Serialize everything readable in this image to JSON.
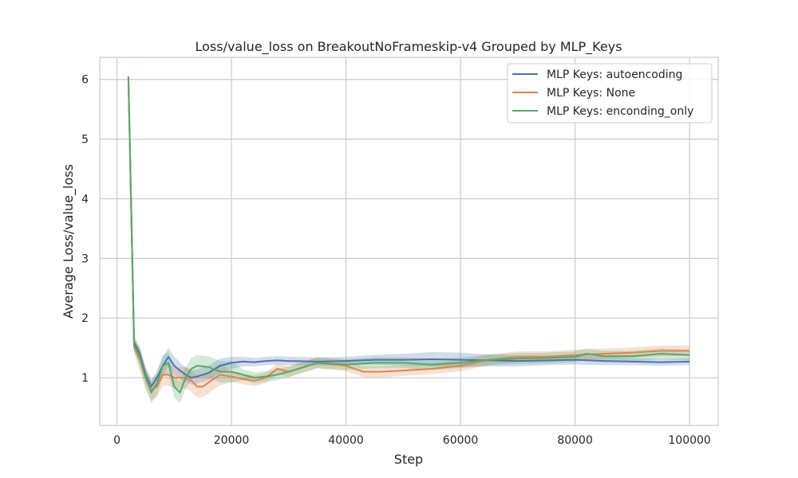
{
  "chart_data": {
    "type": "line",
    "title": "Loss/value_loss on BreakoutNoFrameskip-v4 Grouped by MLP_Keys",
    "xlabel": "Step",
    "ylabel": "Average Loss/value_loss",
    "xlim": [
      -3000,
      105000
    ],
    "ylim": [
      0.2,
      6.37
    ],
    "xticks": [
      0,
      20000,
      40000,
      60000,
      80000,
      100000
    ],
    "yticks": [
      1,
      2,
      3,
      4,
      5,
      6
    ],
    "grid": true,
    "legend_position": "top-right",
    "series": [
      {
        "name": "MLP Keys: autoencoding",
        "color": "#4c72b0",
        "x": [
          2000,
          3000,
          4000,
          5000,
          6000,
          7000,
          8000,
          9000,
          10000,
          11000,
          12000,
          13000,
          14000,
          16000,
          18000,
          20000,
          22000,
          24000,
          26000,
          28000,
          30000,
          35000,
          40000,
          45000,
          50000,
          55000,
          60000,
          65000,
          70000,
          75000,
          80000,
          85000,
          90000,
          95000,
          100000
        ],
        "y": [
          6.05,
          1.6,
          1.4,
          1.05,
          0.85,
          1.0,
          1.2,
          1.35,
          1.2,
          1.12,
          1.05,
          1.0,
          1.02,
          1.08,
          1.2,
          1.25,
          1.27,
          1.26,
          1.28,
          1.29,
          1.28,
          1.27,
          1.28,
          1.3,
          1.3,
          1.31,
          1.3,
          1.29,
          1.28,
          1.29,
          1.3,
          1.28,
          1.27,
          1.26,
          1.27
        ],
        "band": [
          0.1,
          0.1,
          0.1,
          0.1,
          0.1,
          0.12,
          0.15,
          0.15,
          0.15,
          0.14,
          0.12,
          0.12,
          0.12,
          0.12,
          0.12,
          0.1,
          0.08,
          0.07,
          0.07,
          0.07,
          0.07,
          0.07,
          0.07,
          0.08,
          0.1,
          0.12,
          0.12,
          0.1,
          0.09,
          0.08,
          0.08,
          0.07,
          0.06,
          0.06,
          0.06
        ]
      },
      {
        "name": "MLP Keys: None",
        "color": "#dd8452",
        "x": [
          2000,
          3000,
          4000,
          5000,
          6000,
          7000,
          8000,
          9000,
          10000,
          11000,
          12000,
          13000,
          14000,
          15000,
          16000,
          18000,
          20000,
          22000,
          24000,
          26000,
          28000,
          30000,
          35000,
          40000,
          43000,
          46000,
          50000,
          55000,
          60000,
          65000,
          70000,
          75000,
          80000,
          85000,
          90000,
          95000,
          100000
        ],
        "y": [
          6.05,
          1.5,
          1.3,
          1.0,
          0.8,
          0.85,
          1.05,
          1.05,
          1.0,
          1.0,
          1.0,
          0.95,
          0.85,
          0.85,
          0.92,
          1.05,
          1.02,
          0.98,
          0.95,
          1.0,
          1.15,
          1.1,
          1.25,
          1.2,
          1.1,
          1.1,
          1.12,
          1.15,
          1.2,
          1.3,
          1.35,
          1.35,
          1.38,
          1.4,
          1.42,
          1.45,
          1.45
        ]
      },
      {
        "name": "MLP Keys: enconding_only",
        "color": "#55a868",
        "x": [
          2000,
          3000,
          4000,
          5000,
          6000,
          7000,
          8000,
          9000,
          10000,
          11000,
          12000,
          13000,
          14000,
          16000,
          18000,
          20000,
          22000,
          24000,
          26000,
          28000,
          30000,
          35000,
          40000,
          45000,
          50000,
          55000,
          60000,
          65000,
          70000,
          75000,
          80000,
          82000,
          85000,
          90000,
          95000,
          100000
        ],
        "y": [
          6.05,
          1.55,
          1.35,
          1.0,
          0.75,
          0.9,
          1.2,
          1.25,
          0.85,
          0.75,
          1.0,
          1.15,
          1.2,
          1.18,
          1.1,
          1.1,
          1.05,
          1.0,
          1.02,
          1.05,
          1.1,
          1.25,
          1.22,
          1.25,
          1.25,
          1.22,
          1.25,
          1.3,
          1.32,
          1.33,
          1.35,
          1.4,
          1.36,
          1.36,
          1.4,
          1.38
        ]
      }
    ]
  }
}
